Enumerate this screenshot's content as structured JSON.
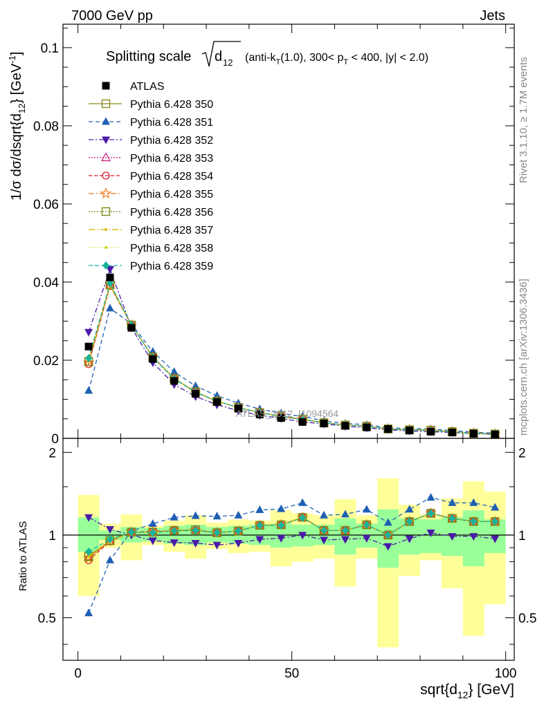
{
  "header": {
    "left": "7000 GeV pp",
    "right": "Jets"
  },
  "side": {
    "rivet": "Rivet 3.1.10, ≥ 1.7M events",
    "mcplots": "mcplots.cern.ch [arXiv:1306.3436]"
  },
  "watermark": "ATLAS_2012_I1094564",
  "title": {
    "main": "Splitting scale",
    "rest": "(anti-k_T(1.0), 300< p_T < 400, |y| < 2.0)"
  },
  "colors": {
    "ATLAS": "#000000",
    "350": "#8a8a1e",
    "351": "#1f5fb4",
    "352": "#4b1aa8",
    "353": "#c2187a",
    "354": "#e0142a",
    "355": "#f07a1e",
    "356": "#7a8a10",
    "357": "#d6b400",
    "358": "#c9d400",
    "359": "#18b49a",
    "band_inner": "#99ff99",
    "band_outer": "#ffff99"
  },
  "chart_data": [
    {
      "type": "line",
      "panel": "main",
      "xlabel": "sqrt{d_12} [GeV]",
      "ylabel": "1/σ dσ/dsqrt{d_12} [GeV^-1]",
      "xlim": [
        -3.5,
        102
      ],
      "ylim": [
        0,
        0.106
      ],
      "yticks": [
        "0",
        "0.02",
        "0.04",
        "0.06",
        "0.08",
        "0.1"
      ],
      "legend_position": "top-left",
      "x": [
        2.5,
        7.5,
        12.5,
        17.5,
        22.5,
        27.5,
        32.5,
        37.5,
        42.5,
        47.5,
        52.5,
        57.5,
        62.5,
        67.5,
        72.5,
        77.5,
        82.5,
        87.5,
        92.5,
        97.5
      ],
      "series": [
        {
          "name": "ATLAS",
          "key": "ATLAS",
          "values": [
            0.0235,
            0.0412,
            0.0283,
            0.0203,
            0.0147,
            0.0114,
            0.0093,
            0.0076,
            0.0061,
            0.0052,
            0.0042,
            0.0038,
            0.0032,
            0.0028,
            0.0024,
            0.002,
            0.0017,
            0.0015,
            0.0012,
            0.001
          ]
        },
        {
          "name": "Pythia 6.428 350",
          "key": "350",
          "values": [
            0.0197,
            0.0393,
            0.029,
            0.0208,
            0.0153,
            0.0119,
            0.0095,
            0.0079,
            0.0066,
            0.0057,
            0.0049,
            0.004,
            0.0034,
            0.0031,
            0.0024,
            0.0022,
            0.0021,
            0.0017,
            0.0013,
            0.0011
          ]
        },
        {
          "name": "Pythia 6.428 351",
          "key": "351",
          "values": [
            0.0122,
            0.0333,
            0.0293,
            0.0222,
            0.017,
            0.0134,
            0.0109,
            0.009,
            0.0075,
            0.0064,
            0.0056,
            0.0045,
            0.0038,
            0.0035,
            0.0027,
            0.0025,
            0.0024,
            0.002,
            0.0016,
            0.0013
          ]
        },
        {
          "name": "Pythia 6.428 352",
          "key": "352",
          "values": [
            0.0272,
            0.0433,
            0.0283,
            0.0194,
            0.0138,
            0.0107,
            0.0086,
            0.0071,
            0.0059,
            0.0051,
            0.0042,
            0.0037,
            0.0031,
            0.0027,
            0.0022,
            0.0019,
            0.0017,
            0.0015,
            0.0012,
            0.001
          ]
        },
        {
          "name": "Pythia 6.428 353",
          "key": "353",
          "values": [
            0.0195,
            0.0392,
            0.029,
            0.0208,
            0.0153,
            0.0118,
            0.0095,
            0.0079,
            0.0066,
            0.0056,
            0.0048,
            0.004,
            0.0034,
            0.0031,
            0.0024,
            0.0022,
            0.002,
            0.0017,
            0.0013,
            0.0011
          ]
        },
        {
          "name": "Pythia 6.428 354",
          "key": "354",
          "values": [
            0.019,
            0.039,
            0.029,
            0.0209,
            0.0153,
            0.0118,
            0.0095,
            0.0079,
            0.0066,
            0.0057,
            0.0048,
            0.004,
            0.0034,
            0.0031,
            0.0024,
            0.0022,
            0.002,
            0.0017,
            0.0013,
            0.0011
          ]
        },
        {
          "name": "Pythia 6.428 355",
          "key": "355",
          "values": [
            0.0194,
            0.0392,
            0.029,
            0.0208,
            0.0153,
            0.0118,
            0.0095,
            0.0079,
            0.0066,
            0.0056,
            0.0048,
            0.004,
            0.0034,
            0.0031,
            0.0024,
            0.0022,
            0.002,
            0.0017,
            0.0013,
            0.0011
          ]
        },
        {
          "name": "Pythia 6.428 356",
          "key": "356",
          "values": [
            0.0196,
            0.0393,
            0.029,
            0.0208,
            0.0153,
            0.0119,
            0.0095,
            0.0079,
            0.0066,
            0.0057,
            0.0049,
            0.004,
            0.0034,
            0.0031,
            0.0024,
            0.0022,
            0.0021,
            0.0017,
            0.0013,
            0.0011
          ]
        },
        {
          "name": "Pythia 6.428 357",
          "key": "357",
          "values": [
            0.0196,
            0.0392,
            0.029,
            0.0208,
            0.0153,
            0.0118,
            0.0095,
            0.0079,
            0.0066,
            0.0056,
            0.0048,
            0.004,
            0.0034,
            0.0031,
            0.0024,
            0.0022,
            0.002,
            0.0017,
            0.0013,
            0.0011
          ]
        },
        {
          "name": "Pythia 6.428 358",
          "key": "358",
          "values": [
            0.0197,
            0.0393,
            0.029,
            0.0208,
            0.0153,
            0.0119,
            0.0095,
            0.0079,
            0.0066,
            0.0057,
            0.0049,
            0.004,
            0.0034,
            0.0031,
            0.0024,
            0.0022,
            0.0021,
            0.0017,
            0.0013,
            0.0011
          ]
        },
        {
          "name": "Pythia 6.428 359",
          "key": "359",
          "values": [
            0.0205,
            0.0397,
            0.029,
            0.0207,
            0.0152,
            0.0118,
            0.0095,
            0.0079,
            0.0066,
            0.0056,
            0.0048,
            0.004,
            0.0034,
            0.0031,
            0.0024,
            0.0022,
            0.002,
            0.0017,
            0.0013,
            0.0011
          ]
        }
      ]
    },
    {
      "type": "line",
      "panel": "ratio",
      "xlabel": "sqrt{d_12} [GeV]",
      "ylabel": "Ratio to ATLAS",
      "xlim": [
        -3.5,
        102
      ],
      "xticks": [
        "0",
        "50",
        "100"
      ],
      "ylim": [
        0.35,
        2.25
      ],
      "yticks": [
        "0.5",
        "1",
        "2"
      ],
      "reference": 1,
      "bands": {
        "inner": [
          [
            0.87,
            1.16
          ],
          [
            0.96,
            1.04
          ],
          [
            0.94,
            1.07
          ],
          [
            0.95,
            1.06
          ],
          [
            0.93,
            1.08
          ],
          [
            0.92,
            1.09
          ],
          [
            0.94,
            1.07
          ],
          [
            0.93,
            1.08
          ],
          [
            0.92,
            1.09
          ],
          [
            0.9,
            1.1
          ],
          [
            0.91,
            1.09
          ],
          [
            0.92,
            1.09
          ],
          [
            0.85,
            1.15
          ],
          [
            0.9,
            1.1
          ],
          [
            0.76,
            1.24
          ],
          [
            0.85,
            1.15
          ],
          [
            0.86,
            1.14
          ],
          [
            0.84,
            1.16
          ],
          [
            0.77,
            1.23
          ],
          [
            0.86,
            1.14
          ]
        ],
        "outer": [
          [
            0.6,
            1.4
          ],
          [
            0.9,
            1.1
          ],
          [
            0.81,
            1.19
          ],
          [
            0.92,
            1.08
          ],
          [
            0.87,
            1.13
          ],
          [
            0.82,
            1.18
          ],
          [
            0.89,
            1.11
          ],
          [
            0.86,
            1.14
          ],
          [
            0.87,
            1.13
          ],
          [
            0.77,
            1.23
          ],
          [
            0.8,
            1.2
          ],
          [
            0.82,
            1.18
          ],
          [
            0.65,
            1.35
          ],
          [
            0.82,
            1.18
          ],
          [
            0.39,
            1.61
          ],
          [
            0.71,
            1.29
          ],
          [
            0.81,
            1.19
          ],
          [
            0.64,
            1.36
          ],
          [
            0.43,
            1.57
          ],
          [
            0.56,
            1.44
          ]
        ]
      },
      "x": [
        2.5,
        7.5,
        12.5,
        17.5,
        22.5,
        27.5,
        32.5,
        37.5,
        42.5,
        47.5,
        52.5,
        57.5,
        62.5,
        67.5,
        72.5,
        77.5,
        82.5,
        87.5,
        92.5,
        97.5
      ],
      "series": [
        {
          "name": "Pythia 6.428 350",
          "key": "350",
          "values": [
            0.84,
            0.955,
            1.025,
            1.025,
            1.04,
            1.045,
            1.02,
            1.035,
            1.085,
            1.09,
            1.16,
            1.04,
            1.04,
            1.09,
            1.0,
            1.12,
            1.2,
            1.15,
            1.12,
            1.12
          ]
        },
        {
          "name": "Pythia 6.428 351",
          "key": "351",
          "values": [
            0.52,
            0.81,
            1.035,
            1.1,
            1.16,
            1.175,
            1.17,
            1.18,
            1.235,
            1.245,
            1.31,
            1.18,
            1.19,
            1.24,
            1.11,
            1.24,
            1.37,
            1.31,
            1.31,
            1.26
          ]
        },
        {
          "name": "Pythia 6.428 352",
          "key": "352",
          "values": [
            1.16,
            1.05,
            1.0,
            0.955,
            0.94,
            0.935,
            0.92,
            0.935,
            0.965,
            0.975,
            1.0,
            0.96,
            0.965,
            0.975,
            0.91,
            0.97,
            1.02,
            0.99,
            0.99,
            0.97
          ]
        },
        {
          "name": "Pythia 6.428 353",
          "key": "353",
          "values": [
            0.83,
            0.95,
            1.025,
            1.025,
            1.04,
            1.045,
            1.02,
            1.035,
            1.085,
            1.09,
            1.16,
            1.04,
            1.04,
            1.09,
            1.0,
            1.12,
            1.2,
            1.15,
            1.12,
            1.12
          ]
        },
        {
          "name": "Pythia 6.428 354",
          "key": "354",
          "values": [
            0.81,
            0.948,
            1.025,
            1.03,
            1.04,
            1.04,
            1.02,
            1.035,
            1.085,
            1.09,
            1.16,
            1.04,
            1.04,
            1.09,
            1.0,
            1.12,
            1.2,
            1.15,
            1.12,
            1.12
          ]
        },
        {
          "name": "Pythia 6.428 355",
          "key": "355",
          "values": [
            0.825,
            0.952,
            1.025,
            1.025,
            1.04,
            1.04,
            1.02,
            1.035,
            1.085,
            1.09,
            1.16,
            1.04,
            1.04,
            1.09,
            1.0,
            1.12,
            1.2,
            1.15,
            1.12,
            1.12
          ]
        },
        {
          "name": "Pythia 6.428 356",
          "key": "356",
          "values": [
            0.835,
            0.955,
            1.025,
            1.025,
            1.04,
            1.045,
            1.02,
            1.035,
            1.085,
            1.09,
            1.16,
            1.04,
            1.04,
            1.09,
            1.0,
            1.12,
            1.2,
            1.15,
            1.12,
            1.12
          ]
        },
        {
          "name": "Pythia 6.428 357",
          "key": "357",
          "values": [
            0.835,
            0.952,
            1.025,
            1.025,
            1.04,
            1.04,
            1.02,
            1.035,
            1.085,
            1.09,
            1.16,
            1.04,
            1.04,
            1.09,
            1.0,
            1.12,
            1.2,
            1.15,
            1.12,
            1.12
          ]
        },
        {
          "name": "Pythia 6.428 358",
          "key": "358",
          "values": [
            0.84,
            0.955,
            1.025,
            1.025,
            1.04,
            1.045,
            1.02,
            1.035,
            1.085,
            1.09,
            1.16,
            1.04,
            1.04,
            1.09,
            1.0,
            1.12,
            1.2,
            1.15,
            1.12,
            1.12
          ]
        },
        {
          "name": "Pythia 6.428 359",
          "key": "359",
          "values": [
            0.87,
            0.965,
            1.025,
            1.02,
            1.035,
            1.04,
            1.02,
            1.035,
            1.085,
            1.085,
            1.155,
            1.04,
            1.04,
            1.09,
            1.0,
            1.12,
            1.2,
            1.15,
            1.12,
            1.12
          ]
        }
      ]
    }
  ]
}
